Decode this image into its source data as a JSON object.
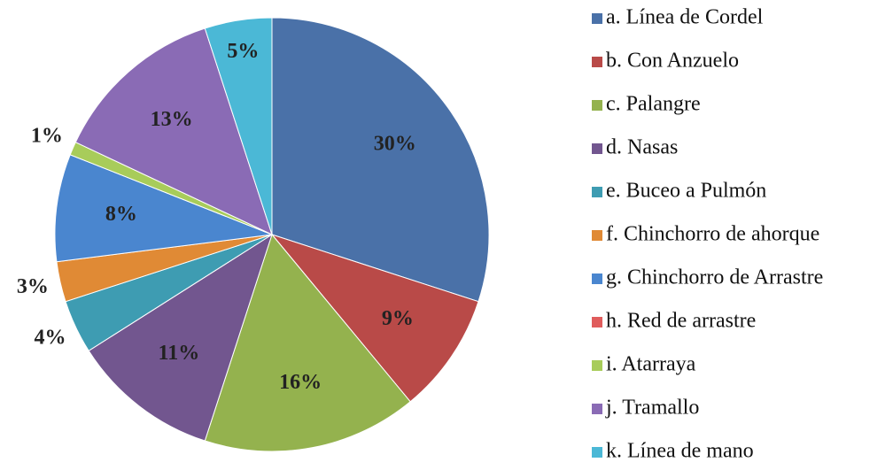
{
  "chart_data": {
    "type": "pie",
    "categories": [
      "a. Línea de Cordel",
      "b. Con Anzuelo",
      "c. Palangre",
      "d. Nasas",
      "e. Buceo a Pulmón",
      "f. Chinchorro de ahorque",
      "g. Chinchorro de Arrastre",
      "h. Red de arrastre",
      "i. Atarraya",
      "j. Tramallo",
      "k. Línea de mano"
    ],
    "values": [
      30,
      9,
      16,
      11,
      4,
      3,
      8,
      0,
      1,
      13,
      5
    ],
    "value_labels": [
      "30%",
      "9%",
      "16%",
      "11%",
      "4%",
      "3%",
      "8%",
      null,
      "1%",
      "13%",
      "5%"
    ],
    "colors": [
      "#4a71a8",
      "#b94a48",
      "#94b24e",
      "#72568f",
      "#3e9cb2",
      "#e08a35",
      "#4a86cf",
      "#e05c5c",
      "#a8cc5a",
      "#8a6bb5",
      "#4bb8d6"
    ],
    "legend": "right"
  }
}
